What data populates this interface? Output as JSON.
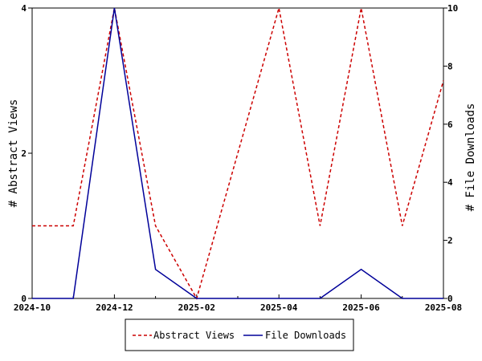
{
  "chart_data": {
    "type": "line",
    "x": [
      "2024-10",
      "2024-11",
      "2024-12",
      "2025-01",
      "2025-02",
      "2025-03",
      "2025-04",
      "2025-05",
      "2025-06",
      "2025-07",
      "2025-08"
    ],
    "x_ticks": [
      "2024-10",
      "2024-12",
      "2025-02",
      "2025-04",
      "2025-06",
      "2025-08"
    ],
    "ylabel_left": "# Abstract Views",
    "ylabel_right": "# File Downloads",
    "ylim_left": [
      0,
      4
    ],
    "ylim_right": [
      0,
      10
    ],
    "yticks_left": [
      "0",
      "2",
      "4"
    ],
    "yticks_right": [
      "0",
      "2",
      "4",
      "6",
      "8",
      "10"
    ],
    "series": [
      {
        "name": "Abstract Views",
        "axis": "left",
        "color": "#cc0000",
        "style": "dashed",
        "values": [
          1,
          1,
          4,
          1,
          0,
          2,
          4,
          1,
          4,
          1,
          3
        ]
      },
      {
        "name": "File Downloads",
        "axis": "right",
        "color": "#000099",
        "style": "solid",
        "values": [
          0,
          0,
          10,
          1,
          0,
          0,
          0,
          0,
          1,
          0,
          0
        ]
      }
    ],
    "grid": false,
    "legend": "bottom"
  }
}
